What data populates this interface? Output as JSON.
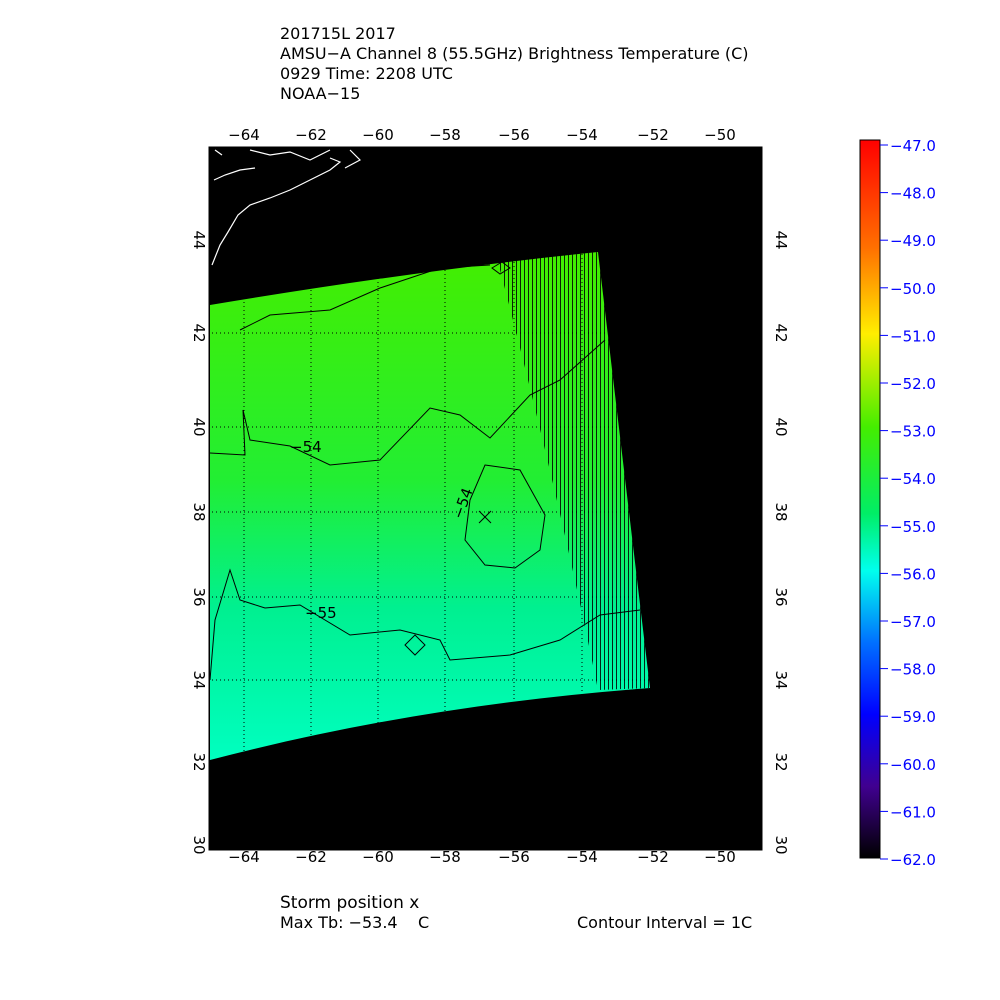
{
  "header": {
    "line1": "201715L 2017",
    "line2": "AMSU−A Channel 8 (55.5GHz) Brightness Temperature (C)",
    "line3": "0929 Time: 2208 UTC",
    "line4": "NOAA−15"
  },
  "footer": {
    "storm_position": "Storm position x",
    "max_tb": "Max Tb: −53.4    C",
    "contour_interval": "Contour Interval = 1C"
  },
  "map": {
    "lon_ticks": [
      "−64",
      "−62",
      "−60",
      "−58",
      "−56",
      "−54",
      "−52",
      "−50"
    ],
    "lat_ticks": [
      "44",
      "42",
      "40",
      "38",
      "36",
      "34",
      "32",
      "30"
    ],
    "contour_labels": [
      "−54",
      "−54",
      "−55"
    ],
    "storm_marker": "x",
    "colors": {
      "background": "#000000",
      "coastline": "#ffffff",
      "swath_top": "#44ee00",
      "swath_mid": "#22ee33",
      "swath_bottom": "#00ffc0"
    }
  },
  "colorbar": {
    "labels": [
      "−47.0",
      "−48.0",
      "−49.0",
      "−50.0",
      "−51.0",
      "−52.0",
      "−53.0",
      "−54.0",
      "−55.0",
      "−56.0",
      "−57.0",
      "−58.0",
      "−59.0",
      "−60.0",
      "−61.0",
      "−62.0"
    ],
    "range": [
      -62,
      -47
    ],
    "label_color": "#0000ff"
  }
}
